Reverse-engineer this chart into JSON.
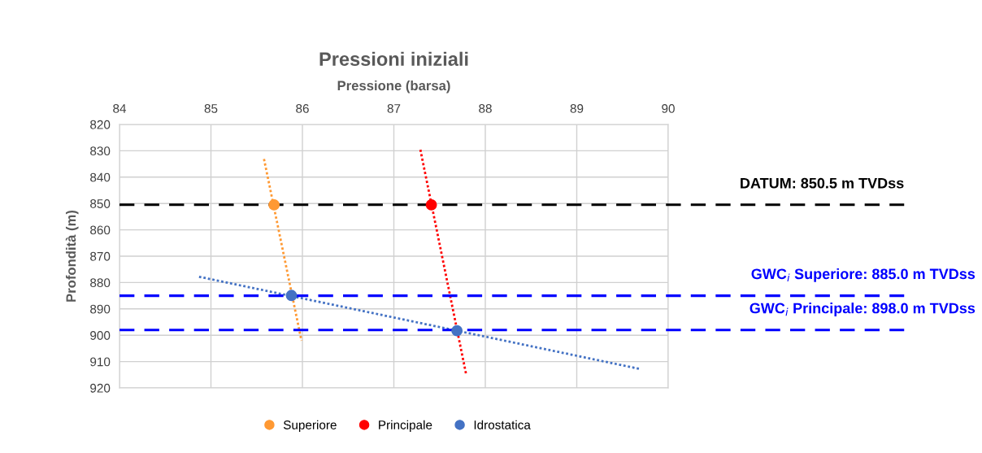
{
  "chart_data": {
    "type": "scatter",
    "title": "Pressioni iniziali",
    "xlabel": "Pressione (barsa)",
    "ylabel": "Profondità (m)",
    "xlim": [
      84,
      90
    ],
    "xticks": [
      84,
      85,
      86,
      87,
      88,
      89,
      90
    ],
    "ylim": [
      920,
      820
    ],
    "yticks": [
      820,
      830,
      840,
      850,
      860,
      870,
      880,
      890,
      900,
      910,
      920
    ],
    "grid": true,
    "legend": "bottom",
    "marker": "circle",
    "series": [
      {
        "name": "Superiore",
        "color": "#ff9933",
        "x": [
          85.69
        ],
        "values": [
          850.5
        ]
      },
      {
        "name": "Principale",
        "color": "#ff0000",
        "x": [
          87.41
        ],
        "values": [
          850.5
        ]
      },
      {
        "name": "Idrostatica",
        "color": "#4472c4",
        "x": [
          85.88,
          87.69
        ],
        "values": [
          884.9,
          898.3
        ]
      },
      {
        "type": "line",
        "color": "#ff9933",
        "line_style": "dotted",
        "marker": "none",
        "x": [
          85.58,
          85.99
        ],
        "values": [
          833.1,
          902.1
        ]
      },
      {
        "type": "line",
        "color": "#ff0000",
        "line_style": "dotted",
        "marker": "none",
        "x": [
          87.29,
          87.79
        ],
        "values": [
          829.6,
          914.8
        ]
      },
      {
        "type": "line",
        "color": "#4472c4",
        "line_style": "dotted",
        "marker": "none",
        "x": [
          84.87,
          89.69
        ],
        "values": [
          877.8,
          912.8
        ]
      }
    ],
    "ref_lines": [
      {
        "axis": "y",
        "value": 850.5,
        "label": "DATUM: 850.5 m TVDss",
        "color": "#000000",
        "line_style": "dashed"
      },
      {
        "axis": "y",
        "value": 885.0,
        "label": "GWC$_{i}$ Superiore: 885.0 m TVDss",
        "color": "#0000ff",
        "line_style": "dashed"
      },
      {
        "axis": "y",
        "value": 898.0,
        "label": "GWC$_{i}$ Principale: 898.0 m TVDss",
        "color": "#0000ff",
        "line_style": "dashed"
      }
    ]
  }
}
